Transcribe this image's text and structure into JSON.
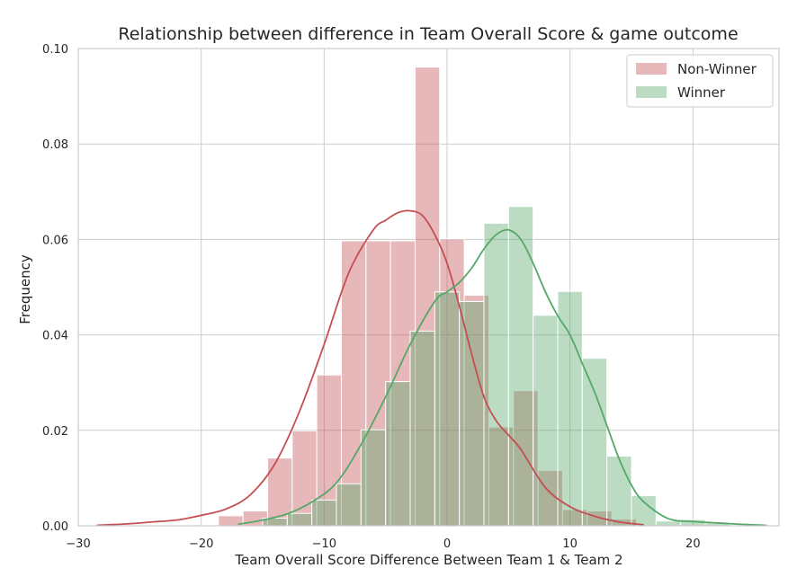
{
  "chart_data": {
    "type": "histogram",
    "title": "Relationship between difference in Team Overall Score  & game outcome",
    "xlabel": "Team Overall Score Difference Between Team 1 & Team 2",
    "ylabel": "Frequency",
    "xlim": [
      -30,
      27
    ],
    "ylim": [
      0,
      0.1
    ],
    "xticks": [
      -30,
      -20,
      -10,
      0,
      10,
      20
    ],
    "xtick_labels": [
      "−30",
      "−20",
      "−10",
      "0",
      "10",
      "20"
    ],
    "yticks": [
      0.0,
      0.02,
      0.04,
      0.06,
      0.08,
      0.1
    ],
    "ytick_labels": [
      "0.00",
      "0.02",
      "0.04",
      "0.06",
      "0.08",
      "0.10"
    ],
    "grid": true,
    "legend_position": "top-right",
    "series": [
      {
        "name": "Non-Winner",
        "color": "#c44e52",
        "bins": [
          {
            "x0": -18.6,
            "x1": -16.6,
            "y": 0.0021
          },
          {
            "x0": -16.6,
            "x1": -14.6,
            "y": 0.0031
          },
          {
            "x0": -14.6,
            "x1": -12.6,
            "y": 0.0142
          },
          {
            "x0": -12.6,
            "x1": -10.6,
            "y": 0.0199
          },
          {
            "x0": -10.6,
            "x1": -8.6,
            "y": 0.0316
          },
          {
            "x0": -8.6,
            "x1": -6.6,
            "y": 0.0597
          },
          {
            "x0": -6.6,
            "x1": -4.6,
            "y": 0.0597
          },
          {
            "x0": -4.6,
            "x1": -2.6,
            "y": 0.0597
          },
          {
            "x0": -2.6,
            "x1": -0.6,
            "y": 0.0961
          },
          {
            "x0": -0.6,
            "x1": 1.4,
            "y": 0.0601
          },
          {
            "x0": 1.4,
            "x1": 3.4,
            "y": 0.0483
          },
          {
            "x0": 3.4,
            "x1": 5.4,
            "y": 0.0207
          },
          {
            "x0": 5.4,
            "x1": 7.4,
            "y": 0.0283
          },
          {
            "x0": 7.4,
            "x1": 9.4,
            "y": 0.0116
          },
          {
            "x0": 9.4,
            "x1": 11.4,
            "y": 0.0034
          },
          {
            "x0": 11.4,
            "x1": 13.4,
            "y": 0.0031
          },
          {
            "x0": 13.4,
            "x1": 15.4,
            "y": 0.0014
          }
        ],
        "kde_x": [
          -28.5,
          -26,
          -24,
          -22,
          -20,
          -18,
          -16,
          -14,
          -12,
          -10,
          -8,
          -6,
          -5,
          -4,
          -3,
          -2,
          -1,
          0,
          1,
          2,
          3,
          4,
          5,
          6,
          8,
          10,
          12,
          14,
          16
        ],
        "kde_y": [
          0.0001,
          0.0004,
          0.0008,
          0.0012,
          0.0022,
          0.0035,
          0.0065,
          0.013,
          0.024,
          0.038,
          0.053,
          0.062,
          0.064,
          0.0656,
          0.066,
          0.065,
          0.061,
          0.055,
          0.046,
          0.036,
          0.027,
          0.022,
          0.019,
          0.016,
          0.008,
          0.004,
          0.002,
          0.0008,
          0.0002
        ]
      },
      {
        "name": "Winner",
        "color": "#55a868",
        "bins": [
          {
            "x0": -15.0,
            "x1": -13.0,
            "y": 0.0016
          },
          {
            "x0": -13.0,
            "x1": -11.0,
            "y": 0.0026
          },
          {
            "x0": -11.0,
            "x1": -9.0,
            "y": 0.0054
          },
          {
            "x0": -9.0,
            "x1": -7.0,
            "y": 0.0088
          },
          {
            "x0": -7.0,
            "x1": -5.0,
            "y": 0.0201
          },
          {
            "x0": -5.0,
            "x1": -3.0,
            "y": 0.0302
          },
          {
            "x0": -3.0,
            "x1": -1.0,
            "y": 0.0408
          },
          {
            "x0": -1.0,
            "x1": 1.0,
            "y": 0.049
          },
          {
            "x0": 1.0,
            "x1": 3.0,
            "y": 0.047
          },
          {
            "x0": 3.0,
            "x1": 5.0,
            "y": 0.0634
          },
          {
            "x0": 5.0,
            "x1": 7.0,
            "y": 0.0669
          },
          {
            "x0": 7.0,
            "x1": 9.0,
            "y": 0.0441
          },
          {
            "x0": 9.0,
            "x1": 11.0,
            "y": 0.0491
          },
          {
            "x0": 11.0,
            "x1": 13.0,
            "y": 0.0351
          },
          {
            "x0": 13.0,
            "x1": 15.0,
            "y": 0.0146
          },
          {
            "x0": 15.0,
            "x1": 17.0,
            "y": 0.0063
          },
          {
            "x0": 17.0,
            "x1": 19.0,
            "y": 0.001
          },
          {
            "x0": 19.0,
            "x1": 21.0,
            "y": 0.0013
          },
          {
            "x0": 21.0,
            "x1": 23.0,
            "y": 0.0006
          }
        ],
        "kde_x": [
          -17,
          -15,
          -13,
          -11,
          -9,
          -7,
          -5,
          -3,
          -1,
          0,
          1,
          2,
          3,
          4,
          5,
          6,
          7,
          8,
          9,
          10,
          11,
          12,
          13,
          14,
          15,
          16,
          18,
          20,
          22,
          24,
          26
        ],
        "kde_y": [
          0.0003,
          0.0012,
          0.0025,
          0.005,
          0.009,
          0.017,
          0.027,
          0.038,
          0.047,
          0.049,
          0.051,
          0.054,
          0.058,
          0.061,
          0.062,
          0.06,
          0.055,
          0.049,
          0.044,
          0.04,
          0.034,
          0.028,
          0.021,
          0.014,
          0.0085,
          0.005,
          0.0015,
          0.0009,
          0.0006,
          0.0003,
          0.0001
        ]
      }
    ]
  }
}
